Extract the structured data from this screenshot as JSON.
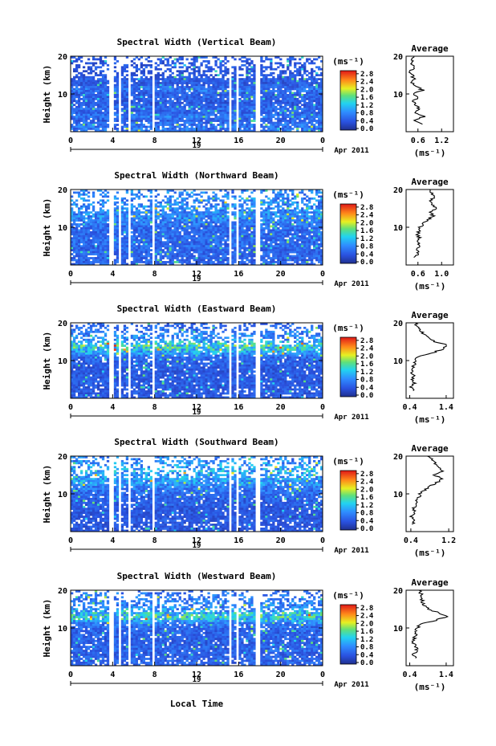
{
  "figure": {
    "xlabel": "Local Time",
    "colorbar_unit": "(ms⁻¹)",
    "colorbar_ticks": [
      "0.0",
      "0.4",
      "0.8",
      "1.2",
      "1.6",
      "2.0",
      "2.4",
      "2.8"
    ],
    "height_label": "Height (km)",
    "avg_title": "Average",
    "avg_xlabel": "(ms⁻¹)"
  },
  "chart_data": [
    {
      "type": "heatmap",
      "title": "Spectral Width (Vertical Beam)",
      "ylabel": "Height (km)",
      "x_ticks": [
        "0",
        "4",
        "8",
        "12",
        "16",
        "20",
        "0"
      ],
      "xlim": [
        0,
        24
      ],
      "y_ticks": [
        "10",
        "20"
      ],
      "ylim": [
        0,
        20
      ],
      "date_label": "19",
      "month_label": "Apr 2011",
      "colorbar_range": [
        0.0,
        3.0
      ],
      "colorbar_ticks": [
        "0.0",
        "0.4",
        "0.8",
        "1.2",
        "1.6",
        "2.0",
        "2.4",
        "2.8"
      ],
      "data_gaps_hours": [
        [
          3.6,
          4.1
        ],
        [
          4.5,
          4.9
        ],
        [
          5.4,
          5.8
        ],
        [
          7.7,
          8.1
        ],
        [
          15.0,
          15.4
        ],
        [
          15.7,
          16.1
        ],
        [
          17.6,
          18.0
        ]
      ],
      "profile": {
        "title": "Average",
        "xlabel": "(ms⁻¹)",
        "x_ticks": [
          "0.6",
          "1.2"
        ],
        "xlim": [
          0.3,
          1.5
        ],
        "y_ticks": [
          "10",
          "20"
        ],
        "ylim": [
          0,
          20
        ],
        "height_km": [
          2,
          3,
          4,
          5,
          6,
          7,
          8,
          9,
          10,
          11,
          12,
          13,
          14,
          15,
          16,
          17,
          18,
          19,
          20
        ],
        "values": [
          0.7,
          0.5,
          0.75,
          0.55,
          0.65,
          0.52,
          0.48,
          0.6,
          0.5,
          0.72,
          0.55,
          0.45,
          0.5,
          0.45,
          0.4,
          0.5,
          0.42,
          0.45,
          0.5
        ]
      }
    },
    {
      "type": "heatmap",
      "title": "Spectral Width (Northward Beam)",
      "ylabel": "Height (km)",
      "x_ticks": [
        "0",
        "4",
        "8",
        "12",
        "16",
        "20",
        "0"
      ],
      "xlim": [
        0,
        24
      ],
      "y_ticks": [
        "10",
        "20"
      ],
      "ylim": [
        0,
        20
      ],
      "date_label": "19",
      "month_label": "Apr 2011",
      "colorbar_range": [
        0.0,
        3.0
      ],
      "colorbar_ticks": [
        "0.0",
        "0.4",
        "0.8",
        "1.2",
        "1.6",
        "2.0",
        "2.4",
        "2.8"
      ],
      "data_gaps_hours": [
        [
          3.6,
          4.1
        ],
        [
          4.5,
          4.9
        ],
        [
          5.4,
          5.8
        ],
        [
          7.7,
          8.1
        ],
        [
          15.0,
          15.4
        ],
        [
          15.7,
          16.1
        ],
        [
          17.6,
          18.0
        ]
      ],
      "profile": {
        "title": "Average",
        "xlabel": "(ms⁻¹)",
        "x_ticks": [
          "0.6",
          "1.0"
        ],
        "xlim": [
          0.4,
          1.2
        ],
        "y_ticks": [
          "10",
          "20"
        ],
        "ylim": [
          0,
          20
        ],
        "height_km": [
          2,
          3,
          4,
          5,
          6,
          7,
          8,
          9,
          10,
          11,
          12,
          13,
          14,
          15,
          16,
          17,
          18,
          19,
          20
        ],
        "values": [
          0.55,
          0.6,
          0.58,
          0.62,
          0.6,
          0.63,
          0.6,
          0.62,
          0.64,
          0.7,
          0.78,
          0.85,
          0.8,
          0.9,
          0.86,
          0.82,
          0.88,
          0.84,
          0.8
        ]
      }
    },
    {
      "type": "heatmap",
      "title": "Spectral Width (Eastward Beam)",
      "ylabel": "Height (km)",
      "x_ticks": [
        "0",
        "4",
        "8",
        "12",
        "16",
        "20",
        "0"
      ],
      "xlim": [
        0,
        24
      ],
      "y_ticks": [
        "10",
        "20"
      ],
      "ylim": [
        0,
        20
      ],
      "date_label": "19",
      "month_label": "Apr 2011",
      "colorbar_range": [
        0.0,
        3.0
      ],
      "colorbar_ticks": [
        "0.0",
        "0.4",
        "0.8",
        "1.2",
        "1.6",
        "2.0",
        "2.4",
        "2.8"
      ],
      "data_gaps_hours": [
        [
          3.6,
          4.1
        ],
        [
          4.5,
          4.9
        ],
        [
          5.4,
          5.8
        ],
        [
          7.7,
          8.1
        ],
        [
          15.0,
          15.4
        ],
        [
          15.7,
          16.1
        ],
        [
          17.6,
          18.0
        ]
      ],
      "profile": {
        "title": "Average",
        "xlabel": "(ms⁻¹)",
        "x_ticks": [
          "0.4",
          "1.4"
        ],
        "xlim": [
          0.3,
          1.6
        ],
        "y_ticks": [
          "10",
          "20"
        ],
        "ylim": [
          0,
          20
        ],
        "height_km": [
          2,
          3,
          4,
          5,
          6,
          7,
          8,
          9,
          10,
          11,
          12,
          13,
          14,
          15,
          16,
          17,
          18,
          19,
          20
        ],
        "values": [
          0.5,
          0.45,
          0.52,
          0.48,
          0.5,
          0.46,
          0.5,
          0.52,
          0.55,
          0.6,
          1.0,
          1.3,
          1.45,
          1.1,
          0.9,
          0.8,
          0.7,
          0.6,
          0.55
        ]
      }
    },
    {
      "type": "heatmap",
      "title": "Spectral Width (Southward Beam)",
      "ylabel": "Height (km)",
      "x_ticks": [
        "0",
        "4",
        "8",
        "12",
        "16",
        "20",
        "0"
      ],
      "xlim": [
        0,
        24
      ],
      "y_ticks": [
        "10",
        "20"
      ],
      "ylim": [
        0,
        20
      ],
      "date_label": "19",
      "month_label": "Apr 2011",
      "colorbar_range": [
        0.0,
        3.0
      ],
      "colorbar_ticks": [
        "0.0",
        "0.4",
        "0.8",
        "1.2",
        "1.6",
        "2.0",
        "2.4",
        "2.8"
      ],
      "data_gaps_hours": [
        [
          3.6,
          4.1
        ],
        [
          4.5,
          4.9
        ],
        [
          5.4,
          5.8
        ],
        [
          7.7,
          8.1
        ],
        [
          15.0,
          15.4
        ],
        [
          15.7,
          16.1
        ],
        [
          17.6,
          18.0
        ]
      ],
      "profile": {
        "title": "Average",
        "xlabel": "(ms⁻¹)",
        "x_ticks": [
          "0.4",
          "1.2"
        ],
        "xlim": [
          0.3,
          1.3
        ],
        "y_ticks": [
          "10",
          "20"
        ],
        "ylim": [
          0,
          20
        ],
        "height_km": [
          2,
          3,
          4,
          5,
          6,
          7,
          8,
          9,
          10,
          11,
          12,
          13,
          14,
          15,
          16,
          17,
          18,
          19,
          20
        ],
        "values": [
          0.45,
          0.5,
          0.42,
          0.48,
          0.45,
          0.5,
          0.52,
          0.55,
          0.6,
          0.7,
          0.8,
          0.95,
          1.05,
          0.9,
          1.1,
          1.0,
          0.92,
          0.85,
          0.75
        ]
      }
    },
    {
      "type": "heatmap",
      "title": "Spectral Width (Westward Beam)",
      "ylabel": "Height (km)",
      "x_ticks": [
        "0",
        "4",
        "8",
        "12",
        "16",
        "20",
        "0"
      ],
      "xlim": [
        0,
        24
      ],
      "y_ticks": [
        "10",
        "20"
      ],
      "ylim": [
        0,
        20
      ],
      "date_label": "19",
      "month_label": "Apr 2011",
      "colorbar_range": [
        0.0,
        3.0
      ],
      "colorbar_ticks": [
        "0.0",
        "0.4",
        "0.8",
        "1.2",
        "1.6",
        "2.0",
        "2.4",
        "2.8"
      ],
      "data_gaps_hours": [
        [
          3.6,
          4.1
        ],
        [
          4.5,
          4.9
        ],
        [
          5.4,
          5.8
        ],
        [
          7.7,
          8.1
        ],
        [
          15.0,
          15.4
        ],
        [
          15.7,
          16.1
        ],
        [
          17.6,
          18.0
        ]
      ],
      "profile": {
        "title": "Average",
        "xlabel": "(ms⁻¹)",
        "x_ticks": [
          "0.4",
          "1.4"
        ],
        "xlim": [
          0.3,
          1.6
        ],
        "y_ticks": [
          "10",
          "20"
        ],
        "ylim": [
          0,
          20
        ],
        "height_km": [
          2,
          3,
          4,
          5,
          6,
          7,
          8,
          9,
          10,
          11,
          12,
          13,
          14,
          15,
          16,
          17,
          18,
          19,
          20
        ],
        "values": [
          0.55,
          0.5,
          0.6,
          0.55,
          0.5,
          0.52,
          0.55,
          0.58,
          0.6,
          0.7,
          1.1,
          1.4,
          1.2,
          0.9,
          0.8,
          0.75,
          0.7,
          0.72,
          0.65
        ]
      }
    }
  ]
}
